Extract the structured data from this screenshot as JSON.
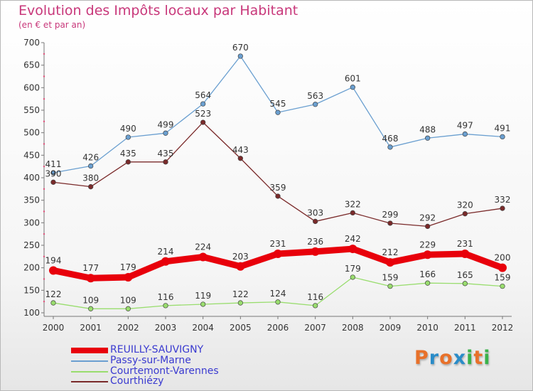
{
  "title": "Evolution des Impôts locaux par Habitant",
  "subtitle": "(en € et par an)",
  "logo": {
    "letters": [
      "P",
      "r",
      "o",
      "x",
      "i",
      "t",
      "i"
    ],
    "colors": [
      "#e8712a",
      "#2a8cc8",
      "#e8712a",
      "#2a8cc8",
      "#3ab24a",
      "#e8712a",
      "#3ab24a"
    ]
  },
  "chart_data": {
    "type": "line",
    "title": "Evolution des Impôts locaux par Habitant",
    "subtitle": "(en € et par an)",
    "xlabel": "",
    "ylabel": "",
    "x": [
      "2000",
      "2001",
      "2002",
      "2003",
      "2004",
      "2005",
      "2006",
      "2007",
      "2008",
      "2009",
      "2010",
      "2011",
      "2012"
    ],
    "ylim": [
      100,
      700
    ],
    "yticks": [
      100,
      150,
      200,
      250,
      300,
      350,
      400,
      450,
      500,
      550,
      600,
      650,
      700
    ],
    "grid": false,
    "legend_position": "bottom-left",
    "series": [
      {
        "name": "REUILLY-SAUVIGNY",
        "color": "#e8000b",
        "emphasis": true,
        "values": [
          194,
          177,
          179,
          214,
          224,
          203,
          231,
          236,
          242,
          212,
          229,
          231,
          200
        ]
      },
      {
        "name": "Passy-sur-Marne",
        "color": "#6a9fd0",
        "emphasis": false,
        "values": [
          411,
          426,
          490,
          499,
          564,
          670,
          545,
          563,
          601,
          468,
          488,
          497,
          491
        ]
      },
      {
        "name": "Courtemont-Varennes",
        "color": "#99dd6e",
        "emphasis": false,
        "values": [
          122,
          109,
          109,
          116,
          119,
          122,
          124,
          116,
          179,
          159,
          166,
          165,
          159
        ]
      },
      {
        "name": "Courthiézy",
        "color": "#7a2a2a",
        "emphasis": false,
        "values": [
          390,
          380,
          435,
          435,
          523,
          443,
          359,
          303,
          322,
          299,
          292,
          320,
          332
        ]
      }
    ]
  }
}
